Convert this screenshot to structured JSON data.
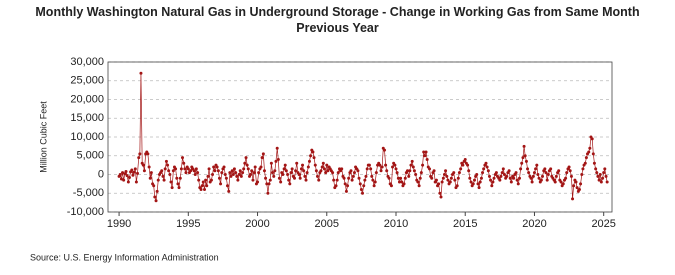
{
  "chart_data": {
    "type": "line",
    "title": "Monthly Washington Natural Gas in Underground Storage - Change in Working Gas from Same Month Previous Year",
    "y_label": "Million Cubic Feet",
    "source": "Source: U.S. Energy Information Administration",
    "color": "#a31515",
    "markers": true,
    "grid": true,
    "xlim": [
      1989.2,
      2025.6
    ],
    "xticks": [
      1990,
      1995,
      2000,
      2005,
      2010,
      2015,
      2020,
      2025
    ],
    "ylim": [
      -10000,
      30000
    ],
    "yticks": [
      {
        "value": -10000,
        "label": "-10,000"
      },
      {
        "value": -5000,
        "label": "-5,000"
      },
      0,
      {
        "value": 5000,
        "label": "5,000"
      },
      {
        "value": 10000,
        "label": "10,000"
      },
      {
        "value": 15000,
        "label": "15,000"
      },
      {
        "value": 20000,
        "label": "20,000"
      },
      {
        "value": 25000,
        "label": "25,000"
      },
      {
        "value": 30000,
        "label": "30,000"
      }
    ],
    "x": [
      1990,
      1990.08,
      1990.17,
      1990.25,
      1990.33,
      1990.42,
      1990.5,
      1990.58,
      1990.67,
      1990.75,
      1990.83,
      1990.92,
      1991,
      1991.08,
      1991.17,
      1991.25,
      1991.33,
      1991.42,
      1991.5,
      1991.58,
      1991.67,
      1991.75,
      1991.83,
      1991.92,
      1992,
      1992.08,
      1992.17,
      1992.25,
      1992.33,
      1992.42,
      1992.5,
      1992.58,
      1992.67,
      1992.75,
      1992.83,
      1992.92,
      1993,
      1993.08,
      1993.17,
      1993.25,
      1993.33,
      1993.42,
      1993.5,
      1993.58,
      1993.67,
      1993.75,
      1993.83,
      1993.92,
      1994,
      1994.08,
      1994.17,
      1994.25,
      1994.33,
      1994.42,
      1994.5,
      1994.58,
      1994.67,
      1994.75,
      1994.83,
      1994.92,
      1995,
      1995.08,
      1995.17,
      1995.25,
      1995.33,
      1995.42,
      1995.5,
      1995.58,
      1995.67,
      1995.75,
      1995.83,
      1995.92,
      1996,
      1996.08,
      1996.17,
      1996.25,
      1996.33,
      1996.42,
      1996.5,
      1996.58,
      1996.67,
      1996.75,
      1996.83,
      1996.92,
      1997,
      1997.08,
      1997.17,
      1997.25,
      1997.33,
      1997.42,
      1997.5,
      1997.58,
      1997.67,
      1997.75,
      1997.83,
      1997.92,
      1998,
      1998.08,
      1998.17,
      1998.25,
      1998.33,
      1998.42,
      1998.5,
      1998.58,
      1998.67,
      1998.75,
      1998.83,
      1998.92,
      1999,
      1999.08,
      1999.17,
      1999.25,
      1999.33,
      1999.42,
      1999.5,
      1999.58,
      1999.67,
      1999.75,
      1999.83,
      1999.92,
      2000,
      2000.08,
      2000.17,
      2000.25,
      2000.33,
      2000.42,
      2000.5,
      2000.58,
      2000.67,
      2000.75,
      2000.83,
      2000.92,
      2001,
      2001.08,
      2001.17,
      2001.25,
      2001.33,
      2001.42,
      2001.5,
      2001.58,
      2001.67,
      2001.75,
      2001.83,
      2001.92,
      2002,
      2002.08,
      2002.17,
      2002.25,
      2002.33,
      2002.42,
      2002.5,
      2002.58,
      2002.67,
      2002.75,
      2002.83,
      2002.92,
      2003,
      2003.08,
      2003.17,
      2003.25,
      2003.33,
      2003.42,
      2003.5,
      2003.58,
      2003.67,
      2003.75,
      2003.83,
      2003.92,
      2004,
      2004.08,
      2004.17,
      2004.25,
      2004.33,
      2004.42,
      2004.5,
      2004.58,
      2004.67,
      2004.75,
      2004.83,
      2004.92,
      2005,
      2005.08,
      2005.17,
      2005.25,
      2005.33,
      2005.42,
      2005.5,
      2005.58,
      2005.67,
      2005.75,
      2005.83,
      2005.92,
      2006,
      2006.08,
      2006.17,
      2006.25,
      2006.33,
      2006.42,
      2006.5,
      2006.58,
      2006.67,
      2006.75,
      2006.83,
      2006.92,
      2007,
      2007.08,
      2007.17,
      2007.25,
      2007.33,
      2007.42,
      2007.5,
      2007.58,
      2007.67,
      2007.75,
      2007.83,
      2007.92,
      2008,
      2008.08,
      2008.17,
      2008.25,
      2008.33,
      2008.42,
      2008.5,
      2008.58,
      2008.67,
      2008.75,
      2008.83,
      2008.92,
      2009,
      2009.08,
      2009.17,
      2009.25,
      2009.33,
      2009.42,
      2009.5,
      2009.58,
      2009.67,
      2009.75,
      2009.83,
      2009.92,
      2010,
      2010.08,
      2010.17,
      2010.25,
      2010.33,
      2010.42,
      2010.5,
      2010.58,
      2010.67,
      2010.75,
      2010.83,
      2010.92,
      2011,
      2011.08,
      2011.17,
      2011.25,
      2011.33,
      2011.42,
      2011.5,
      2011.58,
      2011.67,
      2011.75,
      2011.83,
      2011.92,
      2012,
      2012.08,
      2012.17,
      2012.25,
      2012.33,
      2012.42,
      2012.5,
      2012.58,
      2012.67,
      2012.75,
      2012.83,
      2012.92,
      2013,
      2013.08,
      2013.17,
      2013.25,
      2013.33,
      2013.42,
      2013.5,
      2013.58,
      2013.67,
      2013.75,
      2013.83,
      2013.92,
      2014,
      2014.08,
      2014.17,
      2014.25,
      2014.33,
      2014.42,
      2014.5,
      2014.58,
      2014.67,
      2014.75,
      2014.83,
      2014.92,
      2015,
      2015.08,
      2015.17,
      2015.25,
      2015.33,
      2015.42,
      2015.5,
      2015.58,
      2015.67,
      2015.75,
      2015.83,
      2015.92,
      2016,
      2016.08,
      2016.17,
      2016.25,
      2016.33,
      2016.42,
      2016.5,
      2016.58,
      2016.67,
      2016.75,
      2016.83,
      2016.92,
      2017,
      2017.08,
      2017.17,
      2017.25,
      2017.33,
      2017.42,
      2017.5,
      2017.58,
      2017.67,
      2017.75,
      2017.83,
      2017.92,
      2018,
      2018.08,
      2018.17,
      2018.25,
      2018.33,
      2018.42,
      2018.5,
      2018.58,
      2018.67,
      2018.75,
      2018.83,
      2018.92,
      2019,
      2019.08,
      2019.17,
      2019.25,
      2019.33,
      2019.42,
      2019.5,
      2019.58,
      2019.67,
      2019.75,
      2019.83,
      2019.92,
      2020,
      2020.08,
      2020.17,
      2020.25,
      2020.33,
      2020.42,
      2020.5,
      2020.58,
      2020.67,
      2020.75,
      2020.83,
      2020.92,
      2021,
      2021.08,
      2021.17,
      2021.25,
      2021.33,
      2021.42,
      2021.5,
      2021.58,
      2021.67,
      2021.75,
      2021.83,
      2021.92,
      2022,
      2022.08,
      2022.17,
      2022.25,
      2022.33,
      2022.42,
      2022.5,
      2022.58,
      2022.67,
      2022.75,
      2022.83,
      2022.92,
      2023,
      2023.08,
      2023.17,
      2023.25,
      2023.33,
      2023.42,
      2023.5,
      2023.58,
      2023.67,
      2023.75,
      2023.83,
      2023.92,
      2024,
      2024.08,
      2024.17,
      2024.25,
      2024.33,
      2024.42,
      2024.5,
      2024.58,
      2024.67,
      2024.75,
      2024.83,
      2024.92,
      2025,
      2025.08,
      2025.17,
      2025.25
    ],
    "values": [
      -500,
      0,
      -1200,
      500,
      -1500,
      200,
      800,
      -300,
      -2000,
      -800,
      700,
      1200,
      -200,
      600,
      1500,
      -2000,
      300,
      4500,
      5500,
      27000,
      3000,
      2500,
      1000,
      5500,
      6000,
      5500,
      2000,
      -1000,
      500,
      -2500,
      -3000,
      -6000,
      -7000,
      -4500,
      -1500,
      0,
      500,
      1000,
      -500,
      -1500,
      1500,
      3500,
      2500,
      1000,
      0,
      -2000,
      -3500,
      1000,
      2000,
      1500,
      -1000,
      -2500,
      -3500,
      -1000,
      1500,
      4500,
      3000,
      1500,
      500,
      2000,
      1500,
      500,
      1000,
      2000,
      1500,
      1000,
      0,
      1500,
      500,
      -1500,
      -3500,
      -4000,
      -3000,
      -2000,
      -4000,
      -1500,
      -3000,
      -500,
      1500,
      -2000,
      -1500,
      0,
      2000,
      1000,
      2500,
      2000,
      1000,
      -1000,
      -2500,
      500,
      1500,
      2000,
      0,
      -1000,
      -3000,
      -4500,
      500,
      -500,
      1000,
      0,
      1500,
      500,
      -500,
      -1500,
      0,
      1000,
      -500,
      500,
      1500,
      3000,
      4500,
      2500,
      1500,
      -500,
      0,
      1000,
      -1500,
      500,
      2000,
      -2500,
      -2000,
      500,
      1500,
      2000,
      4500,
      5500,
      1000,
      -1000,
      -2500,
      -5000,
      -2500,
      -1500,
      3000,
      500,
      -500,
      1000,
      3500,
      7000,
      4000,
      -1000,
      -2000,
      500,
      0,
      1500,
      2500,
      1000,
      0,
      -1500,
      -2500,
      500,
      1500,
      -500,
      -1000,
      1000,
      3000,
      500,
      0,
      -1000,
      1500,
      2500,
      1000,
      -500,
      -1500,
      500,
      2000,
      3500,
      5000,
      6500,
      6000,
      4500,
      2500,
      1000,
      -500,
      -1500,
      500,
      1000,
      2000,
      3000,
      1500,
      500,
      2500,
      1000,
      2000,
      1500,
      1000,
      500,
      -1500,
      -3500,
      -3000,
      -1500,
      500,
      1500,
      1000,
      1500,
      -500,
      -1000,
      -2500,
      -4500,
      -3000,
      -1000,
      500,
      1000,
      -1500,
      -500,
      500,
      2000,
      1500,
      1000,
      -1000,
      -2500,
      -4000,
      -5000,
      -3000,
      -1500,
      -500,
      1500,
      2500,
      2500,
      1500,
      -500,
      -1500,
      -3000,
      -2000,
      500,
      2500,
      3000,
      2500,
      1000,
      2000,
      7000,
      6500,
      2500,
      1000,
      -500,
      -1000,
      -2500,
      -3000,
      2000,
      3000,
      2500,
      1500,
      500,
      -1000,
      -2000,
      -1000,
      -2000,
      -3000,
      -2500,
      -1000,
      500,
      1000,
      -500,
      1000,
      2500,
      3500,
      2000,
      1000,
      0,
      -1500,
      -2000,
      -3000,
      -1000,
      500,
      2500,
      6000,
      5000,
      6000,
      4000,
      2000,
      1500,
      -500,
      -1000,
      500,
      1000,
      -2000,
      -1500,
      -3000,
      -2500,
      -5000,
      -6000,
      -2000,
      -1000,
      0,
      1000,
      -500,
      -1500,
      -2500,
      -2000,
      -1000,
      0,
      500,
      -1500,
      -3500,
      -3000,
      -1000,
      500,
      1500,
      3000,
      2500,
      3500,
      4000,
      3000,
      2500,
      1000,
      -1000,
      -2000,
      -3000,
      -2500,
      -1500,
      -500,
      0,
      -2500,
      -3500,
      -2000,
      -1000,
      500,
      1500,
      2500,
      3000,
      2000,
      1000,
      -500,
      -1500,
      -3000,
      -2000,
      -1000,
      0,
      500,
      -500,
      -1000,
      -1500,
      -500,
      500,
      1500,
      0,
      -1000,
      -500,
      500,
      1000,
      -1000,
      -2000,
      -500,
      -1000,
      0,
      500,
      -1500,
      -2500,
      -1000,
      1500,
      3000,
      4500,
      7500,
      5000,
      3500,
      1500,
      500,
      -500,
      -1000,
      -2000,
      -500,
      500,
      1500,
      2500,
      0,
      -1000,
      -2000,
      -1500,
      -500,
      1000,
      1500,
      500,
      -1500,
      0,
      1000,
      1500,
      -500,
      -1000,
      -1500,
      -2000,
      -500,
      500,
      1000,
      -1500,
      -2000,
      -3000,
      -2500,
      -1500,
      -1000,
      500,
      1500,
      2000,
      1000,
      -500,
      -6500,
      -3000,
      -1500,
      -2000,
      -3500,
      -4500,
      -4000,
      -2500,
      0,
      1500,
      2500,
      3000,
      4500,
      5500,
      6000,
      7000,
      10000,
      9500,
      5500,
      3000,
      1500,
      500,
      -500,
      -1500,
      0,
      -2000,
      -1000,
      500,
      1500,
      -500,
      -2000
    ]
  }
}
